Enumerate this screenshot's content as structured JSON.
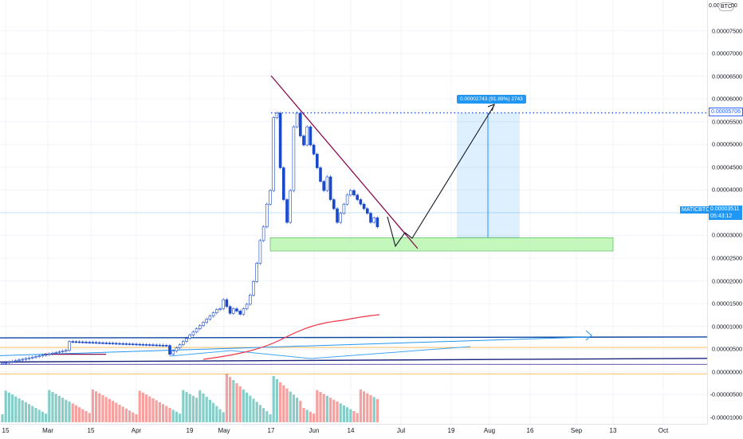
{
  "symbol": "MATICBTC",
  "current_price": "0.00003511",
  "countdown": "05:43:12",
  "horizontal_level": "0.00005706",
  "measure_label": "0.00002743 (91.89%) 2743",
  "currency_button": "BTC",
  "top_label": "0.00",
  "top_label_tail": "00",
  "price_ticks": [
    "0.00007500",
    "0.00007000",
    "0.00006500",
    "0.00006000",
    "0.00005500",
    "0.00005000",
    "0.00004500",
    "0.00004000",
    "0.00003500",
    "0.00003000",
    "0.00002500",
    "0.00002000",
    "0.00001500",
    "0.00001000",
    "0.00000500",
    "0.00000000",
    "-0.00000500",
    "-0.00001000"
  ],
  "time_ticks": [
    "15",
    "Mar",
    "15",
    "Apr",
    "19",
    "May",
    "17",
    "Jun",
    "14",
    "Jul",
    "19",
    "Aug",
    "16",
    "Sep",
    "13",
    "Oct"
  ],
  "colors": {
    "up": "#26a69a",
    "down": "#ef5350",
    "candle_body": "#1848cc",
    "trendline": "#880e4f",
    "zone": "#b9f6b0",
    "measure": "#2196f3",
    "level": "#2962ff",
    "ema": "#f23645",
    "channel": "#0d47a1"
  }
}
